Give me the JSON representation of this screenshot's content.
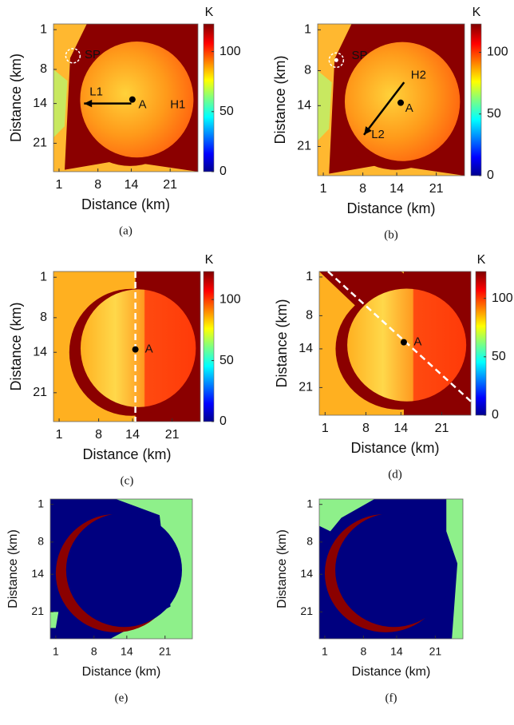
{
  "chart_data": [
    {
      "type": "heatmap",
      "caption": "(a)",
      "xlabel": "Distance (km)",
      "ylabel": "Distance (km)",
      "xlim": [
        0,
        26
      ],
      "ylim": [
        26,
        0
      ],
      "xticks": [
        1,
        8,
        14,
        21
      ],
      "yticks": [
        1,
        8,
        14,
        21
      ],
      "colorbar_label": "K",
      "clim": [
        0,
        123
      ],
      "cticks": [
        0,
        50,
        100
      ],
      "annotations": [
        "SP",
        "L1",
        "A",
        "H1"
      ]
    },
    {
      "type": "heatmap",
      "caption": "(b)",
      "xlabel": "Distance (km)",
      "ylabel": "Distance (km)",
      "xlim": [
        0,
        26
      ],
      "ylim": [
        26,
        0
      ],
      "xticks": [
        1,
        8,
        14,
        21
      ],
      "yticks": [
        1,
        8,
        14,
        21
      ],
      "colorbar_label": "K",
      "clim": [
        0,
        123
      ],
      "cticks": [
        0,
        50,
        100
      ],
      "annotations": [
        "SP",
        "H2",
        "A",
        "L2"
      ]
    },
    {
      "type": "heatmap",
      "caption": "(c)",
      "xlabel": "Distance (km)",
      "ylabel": "Distance (km)",
      "xlim": [
        0,
        26
      ],
      "ylim": [
        26,
        0
      ],
      "xticks": [
        1,
        8,
        14,
        21
      ],
      "yticks": [
        1,
        8,
        14,
        21
      ],
      "colorbar_label": "K",
      "clim": [
        0,
        123
      ],
      "cticks": [
        0,
        50,
        100
      ],
      "annotations": [
        "A"
      ]
    },
    {
      "type": "heatmap",
      "caption": "(d)",
      "xlabel": "Distance (km)",
      "ylabel": "Distance (km)",
      "xlim": [
        0,
        26
      ],
      "ylim": [
        26,
        0
      ],
      "xticks": [
        1,
        8,
        14,
        21
      ],
      "yticks": [
        1,
        8,
        14,
        21
      ],
      "colorbar_label": "K",
      "clim": [
        0,
        123
      ],
      "cticks": [
        0,
        50,
        100
      ],
      "annotations": [
        "A"
      ]
    },
    {
      "type": "mask",
      "caption": "(e)",
      "xlabel": "Distance (km)",
      "ylabel": "Distance (km)",
      "xlim": [
        0,
        26
      ],
      "ylim": [
        26,
        0
      ],
      "xticks": [
        1,
        8,
        14,
        21
      ],
      "yticks": [
        1,
        8,
        14,
        21
      ]
    },
    {
      "type": "mask",
      "caption": "(f)",
      "xlabel": "Distance (km)",
      "ylabel": "Distance (km)",
      "xlim": [
        0,
        26
      ],
      "ylim": [
        26,
        0
      ],
      "xticks": [
        1,
        8,
        14,
        21
      ],
      "yticks": [
        1,
        8,
        14,
        21
      ]
    }
  ]
}
